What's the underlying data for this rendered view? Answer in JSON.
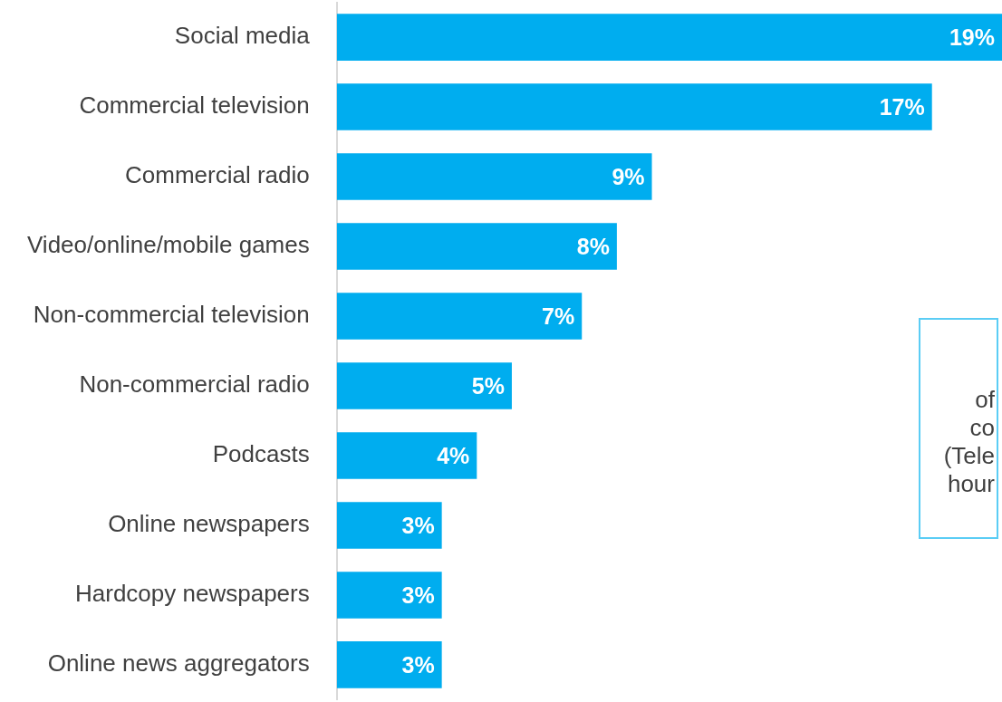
{
  "chart_data": {
    "type": "bar",
    "orientation": "horizontal",
    "categories": [
      "Social media",
      "Commercial television",
      "Commercial radio",
      "Video/online/mobile games",
      "Non-commercial television",
      "Non-commercial radio",
      "Podcasts",
      "Online newspapers",
      "Hardcopy newspapers",
      "Online news aggregators"
    ],
    "values": [
      19,
      17,
      9,
      8,
      7,
      5,
      4,
      3,
      3,
      3
    ],
    "value_labels": [
      "19%",
      "17%",
      "9%",
      "8%",
      "7%",
      "5%",
      "4%",
      "3%",
      "3%",
      "3%"
    ],
    "color": "#00adef",
    "annotations": [
      "of",
      "co",
      "(Tele",
      "hour"
    ]
  }
}
